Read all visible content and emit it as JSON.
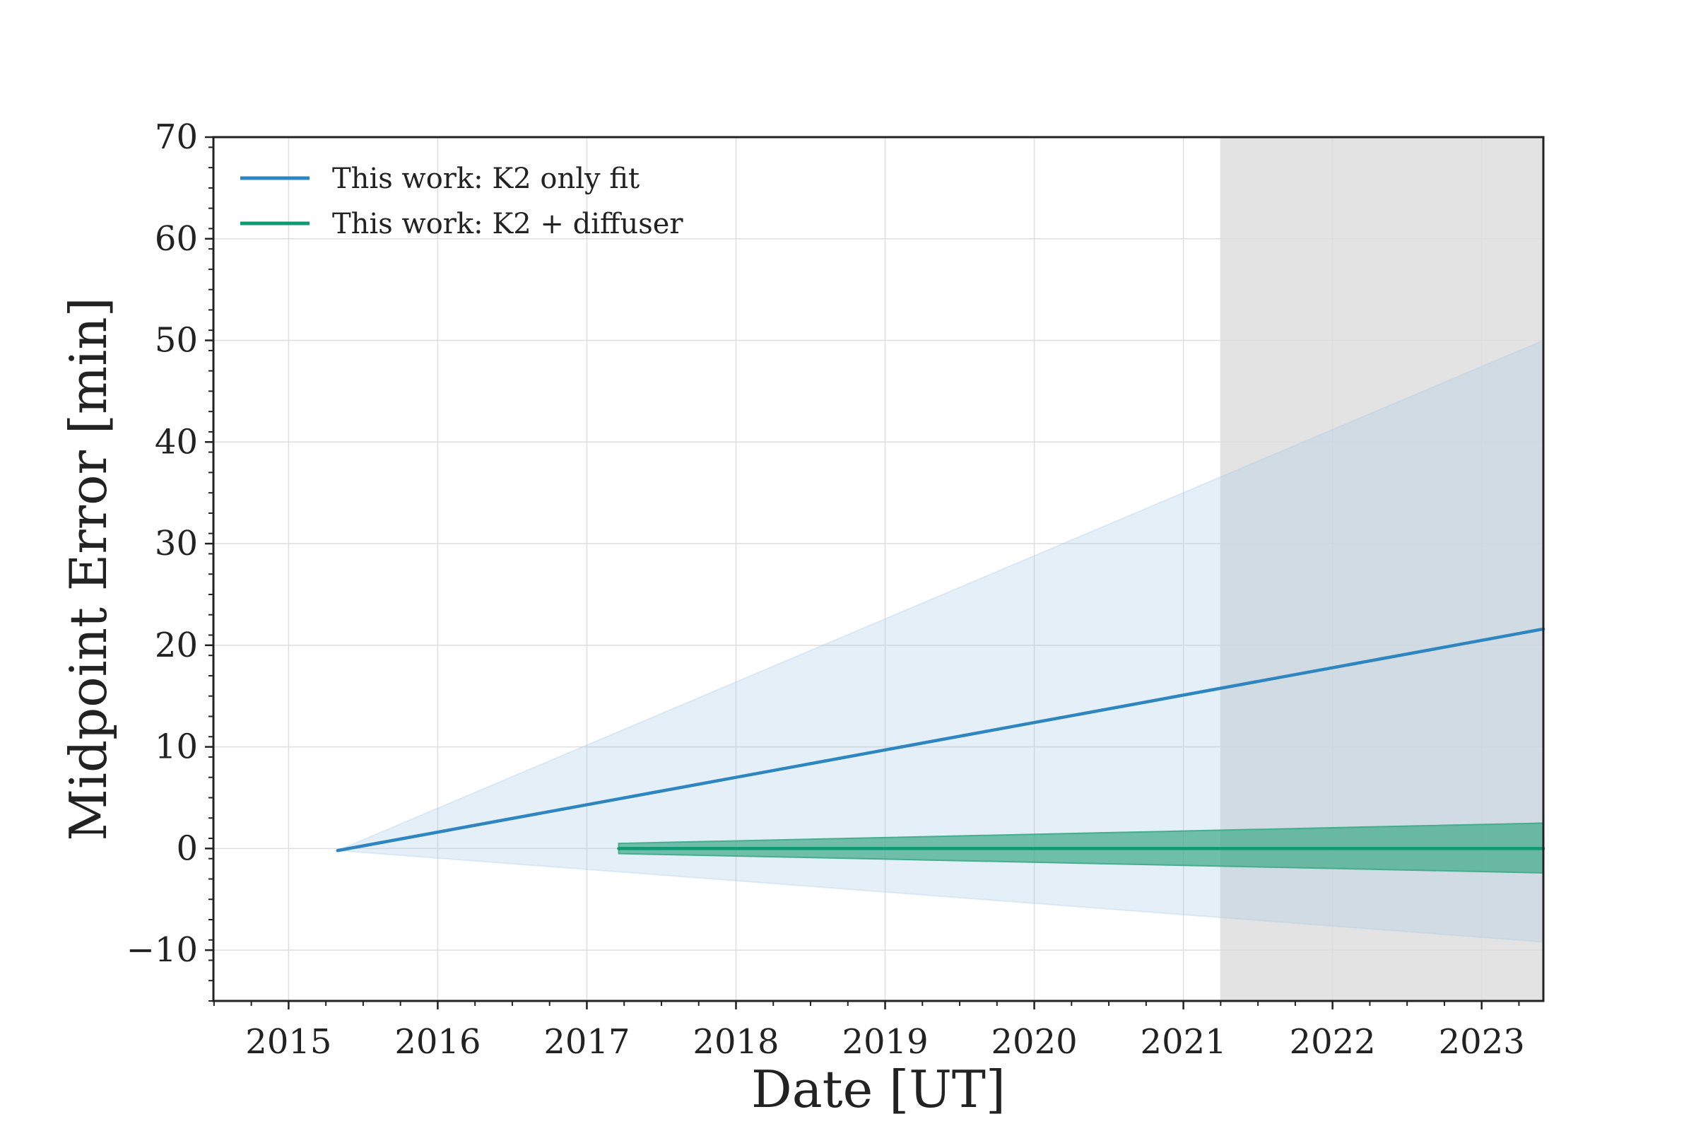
{
  "chart_data": {
    "type": "line",
    "title": "",
    "xlabel": "Date [UT]",
    "ylabel": "Midpoint Error [min]",
    "xlim": [
      "2014-07-01",
      "2023-06-01"
    ],
    "ylim": [
      -15,
      70
    ],
    "x_ticks": [
      {
        "date": "2015-01-01",
        "label": "2015"
      },
      {
        "date": "2016-01-01",
        "label": "2016"
      },
      {
        "date": "2017-01-01",
        "label": "2017"
      },
      {
        "date": "2018-01-01",
        "label": "2018"
      },
      {
        "date": "2019-01-01",
        "label": "2019"
      },
      {
        "date": "2020-01-01",
        "label": "2020"
      },
      {
        "date": "2021-01-01",
        "label": "2021"
      },
      {
        "date": "2022-01-01",
        "label": "2022"
      },
      {
        "date": "2023-01-01",
        "label": "2023"
      }
    ],
    "y_ticks": [
      {
        "value": -10,
        "label": "−10"
      },
      {
        "value": 0,
        "label": "0"
      },
      {
        "value": 10,
        "label": "10"
      },
      {
        "value": 20,
        "label": "20"
      },
      {
        "value": 30,
        "label": "30"
      },
      {
        "value": 40,
        "label": "40"
      },
      {
        "value": 50,
        "label": "50"
      },
      {
        "value": 60,
        "label": "60"
      },
      {
        "value": 70,
        "label": "70"
      }
    ],
    "grid": true,
    "legend_position": "top-left",
    "shaded_region": {
      "x_start": "2021-04-01",
      "x_end": "2023-06-01",
      "color": "#e3e3e3"
    },
    "series": [
      {
        "name": "This work: K2 only fit",
        "color": "#2e86c1",
        "band_color": "#a9cbe6",
        "x": [
          "2015-05-01",
          "2023-06-01"
        ],
        "y": [
          -0.2,
          21.6
        ],
        "band_lower": [
          -0.2,
          -9.2
        ],
        "band_upper": [
          -0.2,
          50.0
        ]
      },
      {
        "name": "This work: K2 + diffuser",
        "color": "#0e9a72",
        "band_color": "#3daa87",
        "x": [
          "2017-03-20",
          "2023-06-01"
        ],
        "y": [
          0.0,
          0.0
        ],
        "band_lower": [
          -0.5,
          -2.4
        ],
        "band_upper": [
          0.5,
          2.5
        ]
      }
    ]
  }
}
